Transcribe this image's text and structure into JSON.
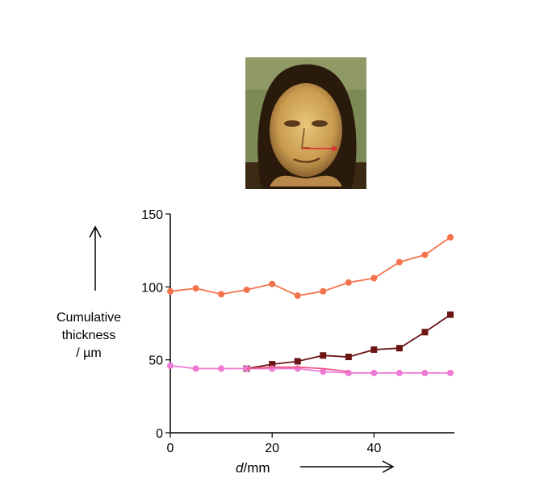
{
  "chart_data": {
    "type": "line",
    "title": "",
    "ylabel_lines": [
      "Cumulative",
      "thickness",
      "/ µm"
    ],
    "xlabel_var": "d",
    "xlabel_unit": "/mm",
    "xlim": [
      0,
      55
    ],
    "ylim": [
      0,
      150
    ],
    "xticks": [
      0,
      20,
      40
    ],
    "yticks": [
      0,
      50,
      100,
      150
    ],
    "grid": false,
    "legend": "none",
    "series": [
      {
        "color": "#f4734a",
        "marker": "circle",
        "x": [
          0,
          5,
          10,
          15,
          20,
          25,
          30,
          35,
          40,
          45,
          50,
          55
        ],
        "y": [
          97,
          99,
          95,
          98,
          102,
          94,
          97,
          103,
          106,
          117,
          122,
          134
        ]
      },
      {
        "color": "#6b1515",
        "marker": "square",
        "x": [
          15,
          20,
          25,
          30,
          35,
          40,
          45,
          50,
          55
        ],
        "y": [
          44,
          47,
          49,
          53,
          52,
          57,
          58,
          69,
          81
        ]
      },
      {
        "color": "#ee7ad4",
        "marker": "circle",
        "x": [
          0,
          5,
          10,
          15,
          20,
          25,
          30,
          35,
          40,
          45,
          50,
          55
        ],
        "y": [
          46,
          44,
          44,
          44,
          44,
          44,
          42,
          41,
          41,
          41,
          41,
          41
        ]
      },
      {
        "color": "#ec5a8a",
        "marker": "none",
        "x": [
          15,
          20,
          25,
          30,
          35
        ],
        "y": [
          44,
          45,
          45,
          44,
          42
        ]
      }
    ]
  },
  "portrait": {
    "icon": "portrait-painting-icon",
    "arrow_color": "#e03030"
  }
}
